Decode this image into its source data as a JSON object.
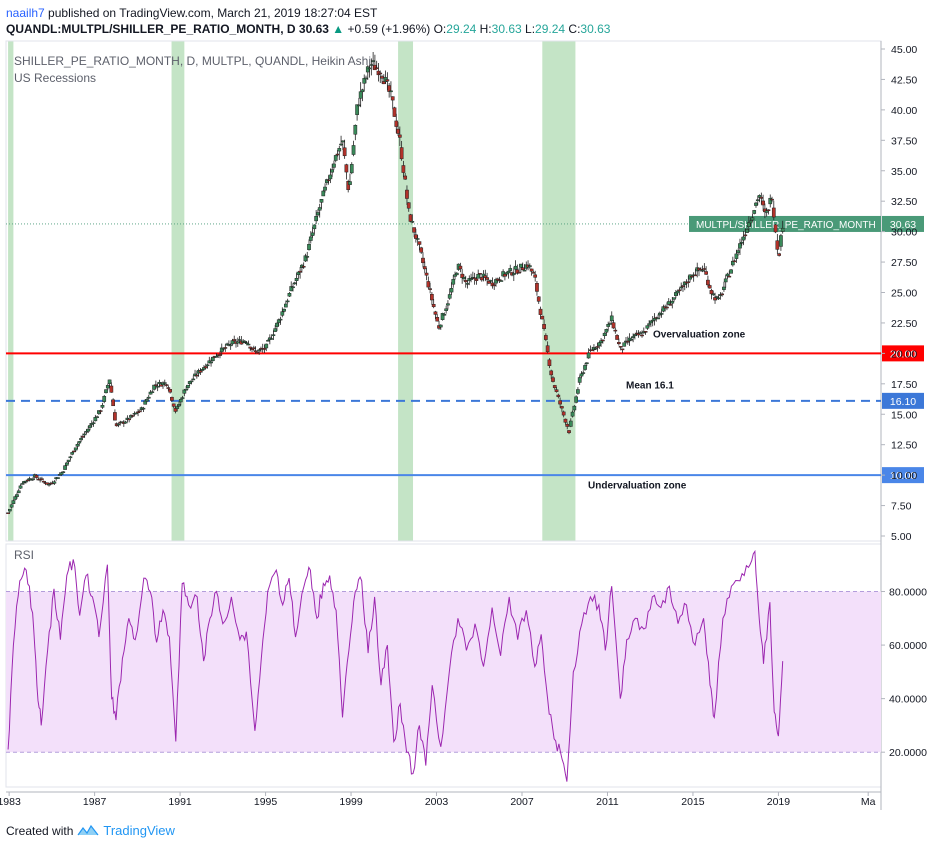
{
  "header": {
    "author": "naailh7",
    "published_text": "published on TradingView.com, March 21, 2019 18:27:04 EST",
    "symbol_line": "QUANDL:MULTPL/SHILLER_PE_RATIO_MONTH, D",
    "last": "30.63",
    "change": "+0.59 (+1.96%)",
    "o_label": "O:",
    "o": "29.24",
    "h_label": "H:",
    "h": "30.63",
    "l_label": "L:",
    "l": "29.24",
    "c_label": "C:",
    "c": "30.63"
  },
  "footer": {
    "created_with": "Created with",
    "brand": "TradingView"
  },
  "colors": {
    "bull": "#26a69a",
    "bull_body": "#3a8a5a",
    "bear": "#e53935",
    "bear_body": "#b2322a",
    "recession": "#a5d6a7",
    "rsi": "#9c27b0",
    "rsi_band": "#f3e0fa",
    "overvaluation_line": "#ff0000",
    "mean_line": "#3c78d8",
    "undervaluation_line": "#4a86e8",
    "last_price_tag": "#4a9a78"
  },
  "chart_data": [
    {
      "type": "candlestick",
      "title": "SHILLER_PE_RATIO_MONTH, D, MULTPL, QUANDL, Heikin Ashi",
      "subtitle": "US Recessions",
      "yscale": "linear",
      "ylim": [
        5,
        45
      ],
      "yticks": [
        "5.00",
        "7.50",
        "10.00",
        "12.50",
        "15.00",
        "17.50",
        "20.00",
        "22.50",
        "25.00",
        "27.50",
        "30.00",
        "32.50",
        "35.00",
        "37.50",
        "40.00",
        "42.50",
        "45.00"
      ],
      "xticks": [
        "1983",
        "1987",
        "1991",
        "1995",
        "1999",
        "2003",
        "2007",
        "2011",
        "2015",
        "2019",
        "Ma"
      ],
      "xlim": [
        1982.9,
        2023.8
      ],
      "path_points": [
        [
          1982.95,
          6.9
        ],
        [
          1983.6,
          9.4
        ],
        [
          1984.2,
          9.9
        ],
        [
          1984.9,
          9.2
        ],
        [
          1985.5,
          10.3
        ],
        [
          1986.1,
          12.3
        ],
        [
          1986.7,
          13.8
        ],
        [
          1987.3,
          15.4
        ],
        [
          1987.7,
          17.9
        ],
        [
          1988.0,
          14.0
        ],
        [
          1988.6,
          14.6
        ],
        [
          1989.2,
          15.4
        ],
        [
          1989.8,
          17.4
        ],
        [
          1990.4,
          17.6
        ],
        [
          1990.8,
          15.2
        ],
        [
          1991.3,
          17.3
        ],
        [
          1992.0,
          18.7
        ],
        [
          1992.7,
          19.9
        ],
        [
          1993.4,
          20.8
        ],
        [
          1994.1,
          21.1
        ],
        [
          1994.5,
          20.1
        ],
        [
          1995.0,
          20.4
        ],
        [
          1995.6,
          22.6
        ],
        [
          1996.2,
          25.2
        ],
        [
          1996.9,
          27.9
        ],
        [
          1997.5,
          31.8
        ],
        [
          1998.2,
          35.8
        ],
        [
          1998.6,
          37.5
        ],
        [
          1998.9,
          33.2
        ],
        [
          1999.3,
          40.4
        ],
        [
          1999.9,
          43.8
        ],
        [
          2000.4,
          43.3
        ],
        [
          2000.9,
          40.9
        ],
        [
          2001.3,
          37.3
        ],
        [
          2001.7,
          31.6
        ],
        [
          2002.2,
          28.6
        ],
        [
          2002.6,
          25.8
        ],
        [
          2003.1,
          22.1
        ],
        [
          2003.6,
          24.6
        ],
        [
          2004.0,
          27.2
        ],
        [
          2004.4,
          25.7
        ],
        [
          2005.0,
          26.4
        ],
        [
          2005.6,
          25.8
        ],
        [
          2006.2,
          26.5
        ],
        [
          2006.8,
          26.9
        ],
        [
          2007.3,
          27.3
        ],
        [
          2007.6,
          26.2
        ],
        [
          2008.0,
          22.1
        ],
        [
          2008.4,
          18.0
        ],
        [
          2008.9,
          15.2
        ],
        [
          2009.2,
          13.6
        ],
        [
          2009.7,
          17.8
        ],
        [
          2010.2,
          20.2
        ],
        [
          2010.7,
          21.0
        ],
        [
          2011.2,
          22.8
        ],
        [
          2011.6,
          20.3
        ],
        [
          2012.1,
          21.2
        ],
        [
          2012.7,
          21.7
        ],
        [
          2013.2,
          22.9
        ],
        [
          2013.8,
          23.9
        ],
        [
          2014.4,
          25.1
        ],
        [
          2015.0,
          26.6
        ],
        [
          2015.5,
          27.0
        ],
        [
          2015.9,
          24.9
        ],
        [
          2016.2,
          24.3
        ],
        [
          2016.7,
          26.6
        ],
        [
          2017.2,
          28.9
        ],
        [
          2017.8,
          31.6
        ],
        [
          2018.1,
          33.1
        ],
        [
          2018.4,
          31.2
        ],
        [
          2018.7,
          33.0
        ],
        [
          2019.0,
          27.9
        ],
        [
          2019.2,
          30.63
        ]
      ],
      "recessions": [
        [
          1982.95,
          1983.2
        ],
        [
          1990.6,
          1991.2
        ],
        [
          2001.2,
          2001.9
        ],
        [
          2007.95,
          2009.5
        ]
      ],
      "horizontal_lines": [
        {
          "value": 20.0,
          "label": "Overvaluation zone",
          "tag": "20.00",
          "style": "solid"
        },
        {
          "value": 16.1,
          "label": "Mean 16.1",
          "tag": "16.10",
          "style": "dashed"
        },
        {
          "value": 10.0,
          "label": "Undervaluation zone",
          "tag": "10.00",
          "style": "solid"
        }
      ],
      "last_price": {
        "value": 30.63,
        "series_label": "MULTPL/SHILLER_PE_RATIO_MONTH",
        "tag": "30.63"
      }
    },
    {
      "type": "line",
      "title": "RSI",
      "ylim": [
        7,
        97
      ],
      "yticks": [
        "20.0000",
        "40.0000",
        "60.0000",
        "80.0000"
      ],
      "band": [
        20,
        80
      ],
      "points": [
        [
          1982.95,
          21
        ],
        [
          1983.2,
          60
        ],
        [
          1983.5,
          84
        ],
        [
          1983.8,
          88
        ],
        [
          1984.1,
          72
        ],
        [
          1984.3,
          45
        ],
        [
          1984.5,
          30
        ],
        [
          1984.8,
          58
        ],
        [
          1985.1,
          81
        ],
        [
          1985.4,
          62
        ],
        [
          1985.7,
          86
        ],
        [
          1986.0,
          92
        ],
        [
          1986.3,
          71
        ],
        [
          1986.6,
          86
        ],
        [
          1986.9,
          78
        ],
        [
          1987.2,
          63
        ],
        [
          1987.6,
          90
        ],
        [
          1987.8,
          40
        ],
        [
          1988.0,
          32
        ],
        [
          1988.3,
          55
        ],
        [
          1988.6,
          70
        ],
        [
          1988.9,
          62
        ],
        [
          1989.3,
          85
        ],
        [
          1989.6,
          80
        ],
        [
          1989.9,
          61
        ],
        [
          1990.2,
          73
        ],
        [
          1990.5,
          63
        ],
        [
          1990.8,
          24
        ],
        [
          1991.1,
          83
        ],
        [
          1991.4,
          75
        ],
        [
          1991.8,
          78
        ],
        [
          1992.1,
          54
        ],
        [
          1992.4,
          70
        ],
        [
          1992.7,
          80
        ],
        [
          1993.0,
          68
        ],
        [
          1993.4,
          78
        ],
        [
          1993.8,
          62
        ],
        [
          1994.1,
          65
        ],
        [
          1994.5,
          28
        ],
        [
          1994.8,
          55
        ],
        [
          1995.1,
          80
        ],
        [
          1995.5,
          88
        ],
        [
          1995.8,
          75
        ],
        [
          1996.1,
          85
        ],
        [
          1996.4,
          63
        ],
        [
          1996.8,
          82
        ],
        [
          1997.1,
          88
        ],
        [
          1997.4,
          70
        ],
        [
          1997.7,
          83
        ],
        [
          1998.0,
          86
        ],
        [
          1998.3,
          73
        ],
        [
          1998.6,
          33
        ],
        [
          1998.9,
          58
        ],
        [
          1999.2,
          80
        ],
        [
          1999.5,
          84
        ],
        [
          1999.8,
          57
        ],
        [
          2000.1,
          78
        ],
        [
          2000.4,
          45
        ],
        [
          2000.7,
          60
        ],
        [
          2001.0,
          24
        ],
        [
          2001.3,
          38
        ],
        [
          2001.6,
          20
        ],
        [
          2001.9,
          12
        ],
        [
          2002.2,
          30
        ],
        [
          2002.5,
          15
        ],
        [
          2002.8,
          45
        ],
        [
          2003.2,
          22
        ],
        [
          2003.6,
          50
        ],
        [
          2004.0,
          70
        ],
        [
          2004.4,
          58
        ],
        [
          2004.8,
          68
        ],
        [
          2005.2,
          52
        ],
        [
          2005.6,
          74
        ],
        [
          2006.0,
          56
        ],
        [
          2006.4,
          78
        ],
        [
          2006.8,
          62
        ],
        [
          2007.2,
          73
        ],
        [
          2007.6,
          52
        ],
        [
          2007.9,
          64
        ],
        [
          2008.2,
          40
        ],
        [
          2008.5,
          25
        ],
        [
          2008.8,
          20
        ],
        [
          2009.1,
          9
        ],
        [
          2009.4,
          50
        ],
        [
          2009.8,
          68
        ],
        [
          2010.2,
          78
        ],
        [
          2010.6,
          75
        ],
        [
          2010.9,
          58
        ],
        [
          2011.2,
          82
        ],
        [
          2011.6,
          40
        ],
        [
          2011.9,
          62
        ],
        [
          2012.3,
          70
        ],
        [
          2012.7,
          66
        ],
        [
          2013.1,
          78
        ],
        [
          2013.5,
          74
        ],
        [
          2013.9,
          82
        ],
        [
          2014.3,
          68
        ],
        [
          2014.7,
          75
        ],
        [
          2015.1,
          60
        ],
        [
          2015.5,
          70
        ],
        [
          2015.8,
          45
        ],
        [
          2016.0,
          33
        ],
        [
          2016.4,
          70
        ],
        [
          2016.8,
          82
        ],
        [
          2017.2,
          84
        ],
        [
          2017.6,
          89
        ],
        [
          2017.9,
          95
        ],
        [
          2018.1,
          70
        ],
        [
          2018.3,
          53
        ],
        [
          2018.6,
          76
        ],
        [
          2018.8,
          35
        ],
        [
          2019.0,
          26
        ],
        [
          2019.2,
          54
        ]
      ]
    }
  ]
}
